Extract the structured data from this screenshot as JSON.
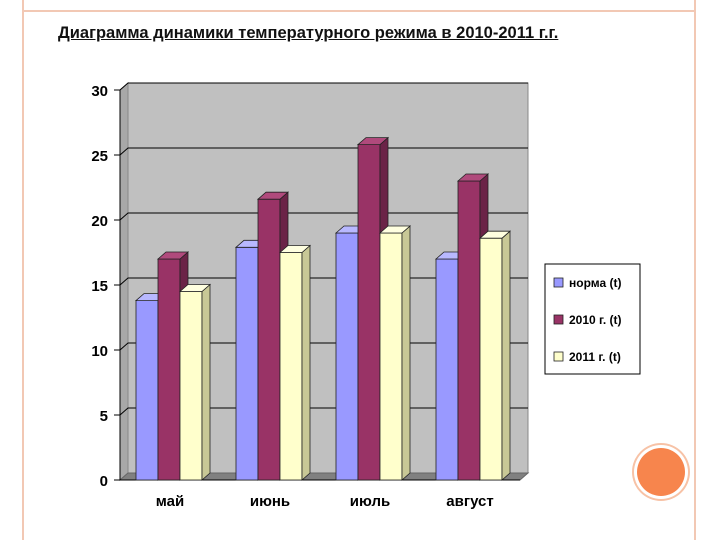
{
  "slide": {
    "title": "Диаграмма  динамики температурного режима в 2010-2011 г.г."
  },
  "chart_data": {
    "type": "bar",
    "title": "Диаграмма  динамики температурного режима в 2010-2011 г.г.",
    "categories": [
      "май",
      "июнь",
      "июль",
      "август"
    ],
    "series": [
      {
        "name": "норма (t)",
        "values": [
          13.8,
          17.9,
          19.0,
          17.0
        ],
        "color": "#9999ff",
        "side": "#6666cc",
        "top": "#b8b8ff"
      },
      {
        "name": "2010 г. (t)",
        "values": [
          17.0,
          21.6,
          25.8,
          23.0
        ],
        "color": "#993366",
        "side": "#6b2347",
        "top": "#b04a7c"
      },
      {
        "name": "2011 г. (t)",
        "values": [
          14.5,
          17.5,
          19.0,
          18.6
        ],
        "color": "#ffffcc",
        "side": "#c8c896",
        "top": "#ffffe0"
      }
    ],
    "yticks": [
      0,
      5,
      10,
      15,
      20,
      25,
      30
    ],
    "ylim": [
      0,
      30
    ],
    "grid": true,
    "legend_position": "right",
    "style": "3d-clustered",
    "colors": {
      "plot_background": "#c0c0c0",
      "floor": "#808080"
    }
  }
}
